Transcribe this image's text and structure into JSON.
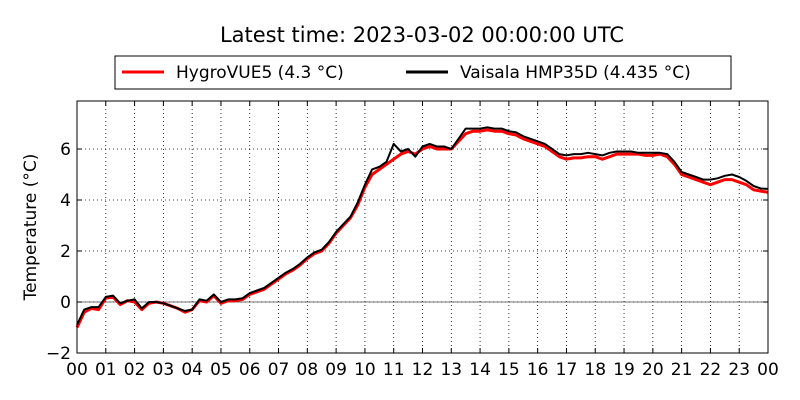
{
  "chart_data": {
    "type": "line",
    "title": "Latest time: 2023-03-02 00:00:00 UTC",
    "xlabel": "",
    "ylabel": "Temperature (°C)",
    "x_ticks": [
      "00",
      "01",
      "02",
      "03",
      "04",
      "05",
      "06",
      "07",
      "08",
      "09",
      "10",
      "11",
      "12",
      "13",
      "14",
      "15",
      "16",
      "17",
      "18",
      "19",
      "20",
      "21",
      "22",
      "23",
      "00"
    ],
    "xlim": [
      0,
      24
    ],
    "y_ticks": [
      "−2",
      "0",
      "2",
      "4",
      "6"
    ],
    "ylim": [
      -2,
      7.8
    ],
    "grid": true,
    "legend_position": "top-center",
    "zero_line": true,
    "series": [
      {
        "name": "HygroVUE5 (4.3 °C)",
        "color": "#ff0000",
        "x": [
          0,
          0.25,
          0.5,
          0.75,
          1,
          1.25,
          1.5,
          1.75,
          2,
          2.25,
          2.5,
          2.75,
          3,
          3.25,
          3.5,
          3.75,
          4,
          4.25,
          4.5,
          4.75,
          5,
          5.25,
          5.5,
          5.75,
          6,
          6.25,
          6.5,
          6.75,
          7,
          7.25,
          7.5,
          7.75,
          8,
          8.25,
          8.5,
          8.75,
          9,
          9.25,
          9.5,
          9.75,
          10,
          10.25,
          10.5,
          10.75,
          11,
          11.25,
          11.5,
          11.75,
          12,
          12.25,
          12.5,
          12.75,
          13,
          13.25,
          13.5,
          13.75,
          14,
          14.25,
          14.5,
          14.75,
          15,
          15.25,
          15.5,
          15.75,
          16,
          16.25,
          16.5,
          16.75,
          17,
          17.25,
          17.5,
          17.75,
          18,
          18.25,
          18.5,
          18.75,
          19,
          19.25,
          19.5,
          19.75,
          20,
          20.25,
          20.5,
          20.75,
          21,
          21.25,
          21.5,
          21.75,
          22,
          22.25,
          22.5,
          22.75,
          23,
          23.25,
          23.5,
          23.75,
          24
        ],
        "values": [
          -1.0,
          -0.4,
          -0.25,
          -0.3,
          0.15,
          0.2,
          -0.1,
          0.05,
          0.0,
          -0.3,
          -0.05,
          0.0,
          -0.05,
          -0.15,
          -0.25,
          -0.4,
          -0.3,
          0.05,
          0.0,
          0.25,
          -0.05,
          0.05,
          0.05,
          0.1,
          0.3,
          0.4,
          0.5,
          0.7,
          0.9,
          1.1,
          1.25,
          1.45,
          1.7,
          1.9,
          2.0,
          2.3,
          2.7,
          3.0,
          3.3,
          3.8,
          4.5,
          5.0,
          5.2,
          5.4,
          5.6,
          5.8,
          5.9,
          5.8,
          6.0,
          6.1,
          6.0,
          6.0,
          6.0,
          6.3,
          6.6,
          6.7,
          6.7,
          6.75,
          6.7,
          6.7,
          6.6,
          6.55,
          6.4,
          6.3,
          6.2,
          6.1,
          5.9,
          5.7,
          5.6,
          5.65,
          5.65,
          5.7,
          5.7,
          5.6,
          5.7,
          5.8,
          5.8,
          5.8,
          5.8,
          5.75,
          5.75,
          5.8,
          5.7,
          5.4,
          5.0,
          4.9,
          4.8,
          4.7,
          4.6,
          4.7,
          4.8,
          4.8,
          4.7,
          4.6,
          4.4,
          4.35,
          4.3
        ]
      },
      {
        "name": "Vaisala HMP35D (4.435 °C)",
        "color": "#000000",
        "x": [
          0,
          0.25,
          0.5,
          0.75,
          1,
          1.25,
          1.5,
          1.75,
          2,
          2.25,
          2.5,
          2.75,
          3,
          3.25,
          3.5,
          3.75,
          4,
          4.25,
          4.5,
          4.75,
          5,
          5.25,
          5.5,
          5.75,
          6,
          6.25,
          6.5,
          6.75,
          7,
          7.25,
          7.5,
          7.75,
          8,
          8.25,
          8.5,
          8.75,
          9,
          9.25,
          9.5,
          9.75,
          10,
          10.25,
          10.5,
          10.75,
          11,
          11.25,
          11.5,
          11.75,
          12,
          12.25,
          12.5,
          12.75,
          13,
          13.25,
          13.5,
          13.75,
          14,
          14.25,
          14.5,
          14.75,
          15,
          15.25,
          15.5,
          15.75,
          16,
          16.25,
          16.5,
          16.75,
          17,
          17.25,
          17.5,
          17.75,
          18,
          18.25,
          18.5,
          18.75,
          19,
          19.25,
          19.5,
          19.75,
          20,
          20.25,
          20.5,
          20.75,
          21,
          21.25,
          21.5,
          21.75,
          22,
          22.25,
          22.5,
          22.75,
          23,
          23.25,
          23.5,
          23.75,
          24
        ],
        "values": [
          -0.9,
          -0.3,
          -0.2,
          -0.2,
          0.2,
          0.25,
          -0.05,
          0.05,
          0.1,
          -0.25,
          0.0,
          0.0,
          -0.05,
          -0.15,
          -0.25,
          -0.35,
          -0.3,
          0.1,
          0.05,
          0.3,
          0.0,
          0.1,
          0.1,
          0.15,
          0.35,
          0.45,
          0.55,
          0.75,
          0.95,
          1.15,
          1.3,
          1.5,
          1.75,
          1.95,
          2.05,
          2.35,
          2.75,
          3.05,
          3.35,
          3.9,
          4.6,
          5.2,
          5.3,
          5.5,
          6.2,
          5.9,
          6.0,
          5.7,
          6.1,
          6.2,
          6.1,
          6.1,
          6.0,
          6.4,
          6.8,
          6.8,
          6.8,
          6.85,
          6.8,
          6.8,
          6.7,
          6.65,
          6.5,
          6.4,
          6.3,
          6.2,
          6.0,
          5.8,
          5.75,
          5.8,
          5.8,
          5.85,
          5.8,
          5.75,
          5.85,
          5.9,
          5.9,
          5.9,
          5.85,
          5.85,
          5.85,
          5.85,
          5.8,
          5.5,
          5.1,
          5.0,
          4.9,
          4.8,
          4.8,
          4.85,
          4.95,
          5.0,
          4.9,
          4.75,
          4.55,
          4.45,
          4.435
        ]
      }
    ]
  }
}
